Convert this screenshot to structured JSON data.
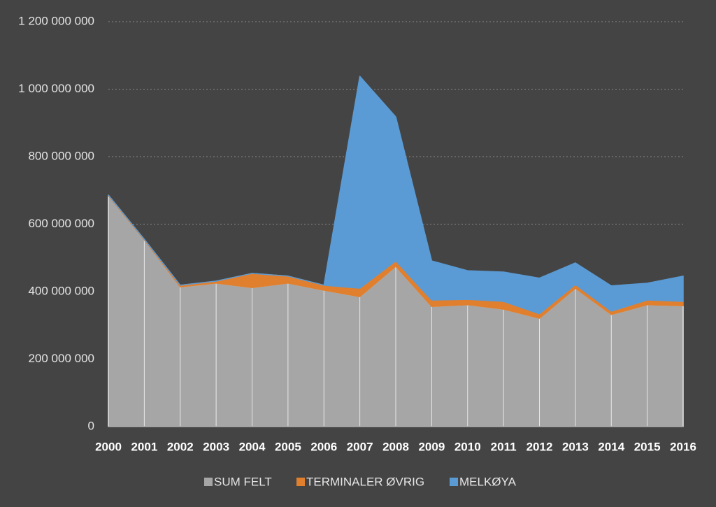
{
  "chart_data": {
    "type": "stacked_area",
    "categories": [
      "2000",
      "2001",
      "2002",
      "2003",
      "2004",
      "2005",
      "2006",
      "2007",
      "2008",
      "2009",
      "2010",
      "2011",
      "2012",
      "2013",
      "2014",
      "2015",
      "2016"
    ],
    "series": [
      {
        "name": "SUM FELT",
        "color": "#a6a6a6",
        "values": [
          684000000,
          553000000,
          414000000,
          425000000,
          412000000,
          425000000,
          404000000,
          385000000,
          475000000,
          356000000,
          361000000,
          348000000,
          321000000,
          410000000,
          332000000,
          361000000,
          358000000
        ]
      },
      {
        "name": "TERMINALER ØVRIG",
        "color": "#e07f2e",
        "values": [
          2000000,
          2000000,
          5000000,
          6000000,
          42000000,
          21000000,
          15000000,
          25000000,
          16000000,
          19000000,
          16000000,
          23000000,
          13000000,
          11000000,
          10000000,
          14000000,
          13000000
        ]
      },
      {
        "name": "MELKØYA",
        "color": "#5b9bd5",
        "values": [
          0,
          0,
          0,
          0,
          0,
          0,
          0,
          628000000,
          427000000,
          116000000,
          85000000,
          87000000,
          106000000,
          64000000,
          75000000,
          50000000,
          75000000
        ]
      }
    ],
    "ylim": [
      0,
      1200000000
    ],
    "yticks": [
      0,
      {
        "value": 200000000,
        "label": "200 000 000"
      },
      {
        "value": 400000000,
        "label": "400 000 000"
      },
      {
        "value": 600000000,
        "label": "600 000 000"
      },
      {
        "value": 800000000,
        "label": "800 000 000"
      },
      {
        "value": 1000000000,
        "label": "1 000 000 000"
      },
      {
        "value": 1200000000,
        "label": "1 200 000 000"
      }
    ],
    "grid": true,
    "legend": "bottom"
  }
}
